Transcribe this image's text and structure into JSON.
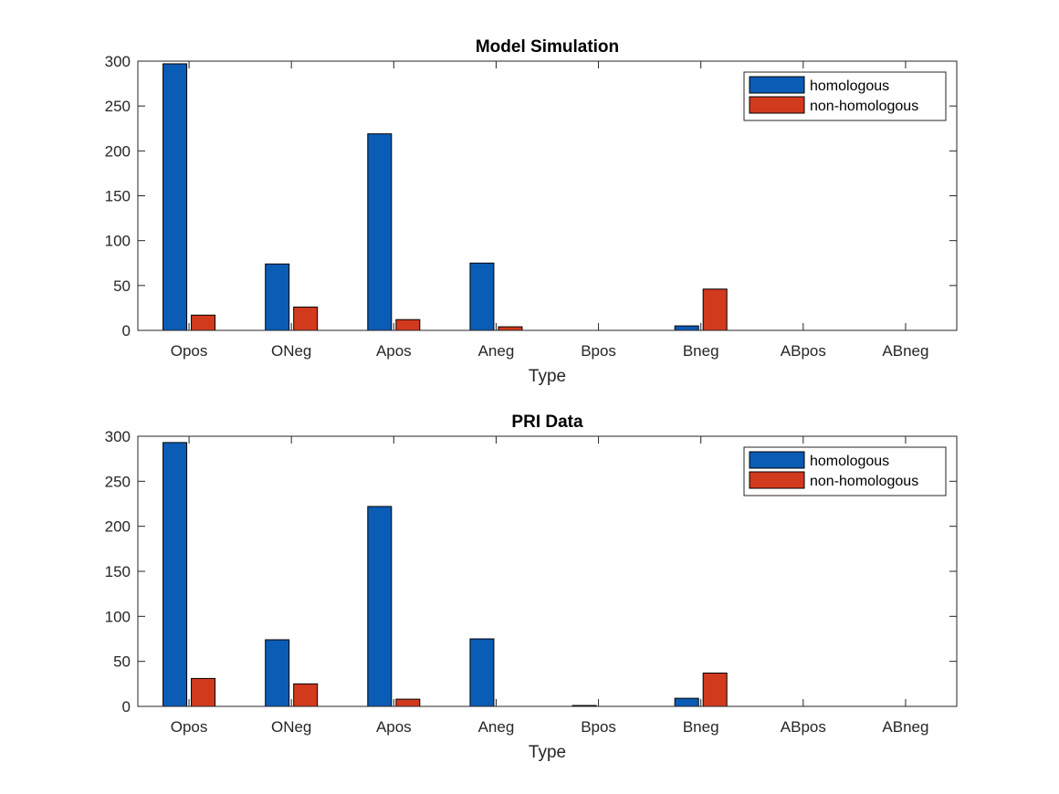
{
  "chart_data": [
    {
      "type": "bar",
      "title": "Model Simulation",
      "xlabel": "Type",
      "ylabel": "",
      "ylim": [
        0,
        300
      ],
      "yticks": [
        0,
        50,
        100,
        150,
        200,
        250,
        300
      ],
      "categories": [
        "Opos",
        "ONeg",
        "Apos",
        "Aneg",
        "Bpos",
        "Bneg",
        "ABpos",
        "ABneg"
      ],
      "series": [
        {
          "name": "homologous",
          "color": "#0b5cb5",
          "values": [
            297,
            74,
            219,
            75,
            0,
            5,
            0,
            0
          ]
        },
        {
          "name": "non-homologous",
          "color": "#d23a1e",
          "values": [
            17,
            26,
            12,
            4,
            0,
            46,
            0,
            0
          ]
        }
      ],
      "legend": "top-right",
      "grid": false
    },
    {
      "type": "bar",
      "title": "PRI Data",
      "xlabel": "Type",
      "ylabel": "",
      "ylim": [
        0,
        300
      ],
      "yticks": [
        0,
        50,
        100,
        150,
        200,
        250,
        300
      ],
      "categories": [
        "Opos",
        "ONeg",
        "Apos",
        "Aneg",
        "Bpos",
        "Bneg",
        "ABpos",
        "ABneg"
      ],
      "series": [
        {
          "name": "homologous",
          "color": "#0b5cb5",
          "values": [
            293,
            74,
            222,
            75,
            1,
            9,
            0,
            0
          ]
        },
        {
          "name": "non-homologous",
          "color": "#d23a1e",
          "values": [
            31,
            25,
            8,
            0,
            0,
            37,
            0,
            0
          ]
        }
      ],
      "legend": "top-right",
      "grid": false
    }
  ]
}
